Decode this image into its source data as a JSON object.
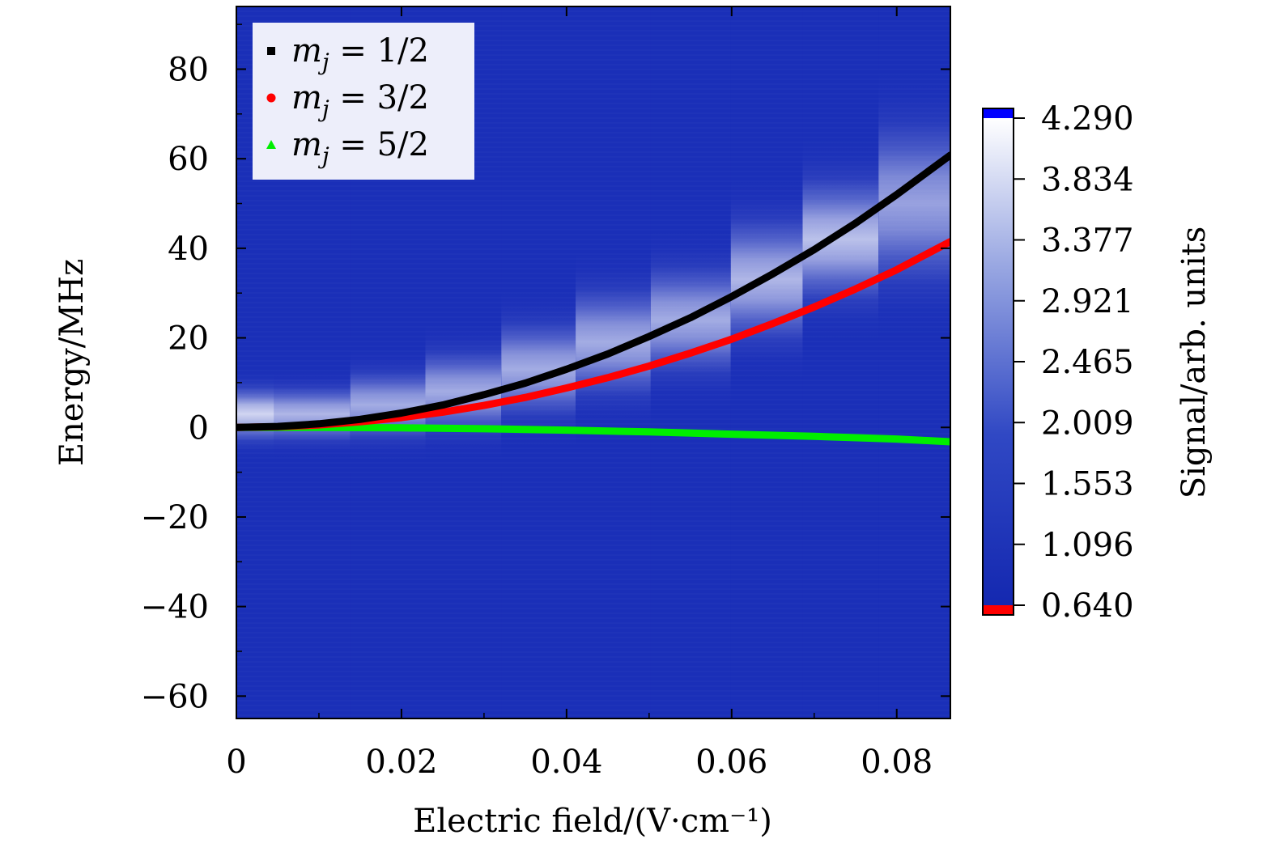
{
  "chart_data": {
    "type": "heatmap",
    "xlabel": "Electric field/(V·cm⁻¹)",
    "ylabel": "Energy/MHz",
    "xlim": [
      0,
      0.0865
    ],
    "ylim": [
      -65,
      94
    ],
    "x_ticks": [
      {
        "value": 0,
        "label": "0"
      },
      {
        "value": 0.02,
        "label": "0.02"
      },
      {
        "value": 0.04,
        "label": "0.04"
      },
      {
        "value": 0.06,
        "label": "0.06"
      },
      {
        "value": 0.08,
        "label": "0.08"
      }
    ],
    "y_ticks": [
      {
        "value": 80,
        "label": "80"
      },
      {
        "value": 60,
        "label": "60"
      },
      {
        "value": 40,
        "label": "40"
      },
      {
        "value": 20,
        "label": "20"
      },
      {
        "value": 0,
        "label": "0"
      },
      {
        "value": -20,
        "label": "−20"
      },
      {
        "value": -40,
        "label": "−40"
      },
      {
        "value": -60,
        "label": "−60"
      }
    ],
    "heatmap_columns": [
      {
        "x0": 0.0,
        "x1": 0.0046,
        "center": 3.0,
        "width": 4.0,
        "peak": 0.8
      },
      {
        "x0": 0.0046,
        "x1": 0.0138,
        "center": 3.0,
        "width": 4.0,
        "peak": 0.65
      },
      {
        "x0": 0.0138,
        "x1": 0.0229,
        "center": 5.0,
        "width": 5.0,
        "peak": 0.6
      },
      {
        "x0": 0.0229,
        "x1": 0.0321,
        "center": 8.0,
        "width": 6.0,
        "peak": 0.6
      },
      {
        "x0": 0.0321,
        "x1": 0.0411,
        "center": 13.0,
        "width": 7.0,
        "peak": 0.6
      },
      {
        "x0": 0.0411,
        "x1": 0.0502,
        "center": 19.0,
        "width": 8.0,
        "peak": 0.6
      },
      {
        "x0": 0.0502,
        "x1": 0.0599,
        "center": 24.0,
        "width": 8.0,
        "peak": 0.6
      },
      {
        "x0": 0.0599,
        "x1": 0.0686,
        "center": 33.0,
        "width": 9.0,
        "peak": 0.65
      },
      {
        "x0": 0.0686,
        "x1": 0.0778,
        "center": 42.0,
        "width": 9.0,
        "peak": 0.7
      },
      {
        "x0": 0.0778,
        "x1": 0.0865,
        "center": 50.0,
        "width": 12.0,
        "peak": 0.55
      }
    ],
    "series": [
      {
        "name": "m_j = 1/2",
        "color": "#000000",
        "marker": "square",
        "x": [
          0,
          0.005,
          0.01,
          0.015,
          0.02,
          0.025,
          0.03,
          0.035,
          0.04,
          0.045,
          0.05,
          0.055,
          0.06,
          0.065,
          0.07,
          0.075,
          0.08,
          0.0865
        ],
        "y": [
          0,
          0.2,
          0.8,
          1.8,
          3.2,
          5.0,
          7.3,
          9.9,
          13.0,
          16.4,
          20.3,
          24.5,
          29.2,
          34.3,
          39.7,
          45.6,
          52.0,
          60.8
        ]
      },
      {
        "name": "m_j = 3/2",
        "color": "#ff0000",
        "marker": "circle",
        "x": [
          0,
          0.005,
          0.01,
          0.015,
          0.02,
          0.025,
          0.03,
          0.035,
          0.04,
          0.045,
          0.05,
          0.055,
          0.06,
          0.065,
          0.07,
          0.075,
          0.08,
          0.0865
        ],
        "y": [
          0,
          0.15,
          0.55,
          1.25,
          2.2,
          3.4,
          4.9,
          6.7,
          8.8,
          11.1,
          13.7,
          16.6,
          19.7,
          23.2,
          26.9,
          30.9,
          35.2,
          41.5
        ]
      },
      {
        "name": "m_j = 5/2",
        "color": "#00ee00",
        "marker": "triangle",
        "x": [
          0,
          0.01,
          0.02,
          0.03,
          0.04,
          0.05,
          0.06,
          0.07,
          0.08,
          0.0865
        ],
        "y": [
          0,
          0.0,
          -0.1,
          -0.3,
          -0.6,
          -1.0,
          -1.5,
          -2.0,
          -2.6,
          -3.2
        ]
      }
    ],
    "legend": {
      "placement": "top-left",
      "entries": [
        {
          "prefix": "m",
          "sub": "j",
          "rest": " = 1/2",
          "color": "#000000",
          "marker": "square"
        },
        {
          "prefix": "m",
          "sub": "j",
          "rest": " = 3/2",
          "color": "#ff0000",
          "marker": "circle"
        },
        {
          "prefix": "m",
          "sub": "j",
          "rest": " = 5/2",
          "color": "#00ee00",
          "marker": "triangle"
        }
      ]
    },
    "colorbar": {
      "label": "Signal/arb. units",
      "min": 0.64,
      "max": 4.29,
      "ticks": [
        "4.290",
        "3.834",
        "3.377",
        "2.921",
        "2.465",
        "2.009",
        "1.553",
        "1.096",
        "0.640"
      ],
      "low_color": "#1a2fb8",
      "high_color": "#ffffff",
      "over_color": "#0000ff",
      "under_color": "#ff0000"
    },
    "colors": {
      "background_low": "#1a2fb8",
      "background_high": "#ffffff"
    },
    "grid": false
  }
}
